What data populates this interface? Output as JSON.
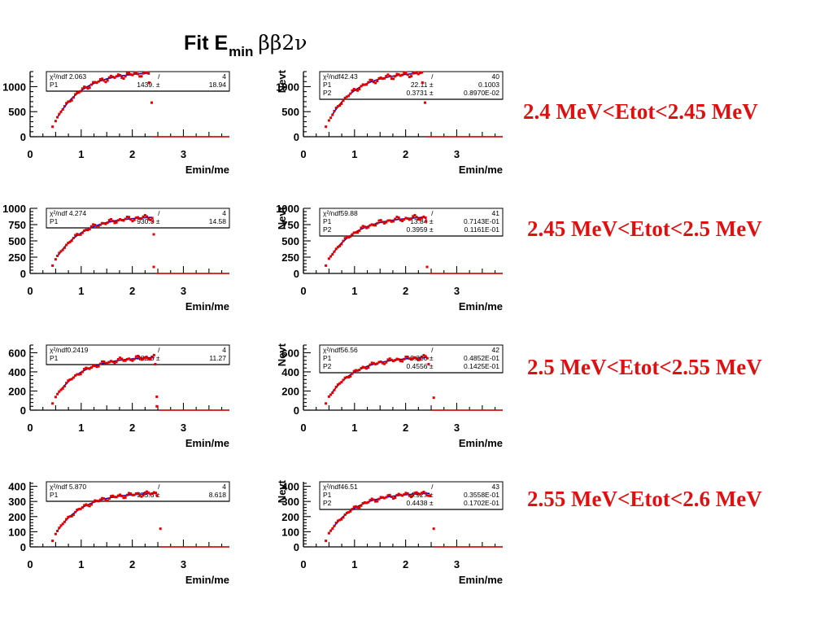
{
  "title": {
    "prefix": "Fit E",
    "sub": "min",
    "suffix": "ββ2ν"
  },
  "colors": {
    "data": "#e00000",
    "fit": "#0000cc",
    "label": "#e01010",
    "axis": "#000000"
  },
  "rows": [
    {
      "energy_label": "2.4 MeV<Etot<2.45 MeV"
    },
    {
      "energy_label": "2.45 MeV<Etot<2.5 MeV"
    },
    {
      "energy_label": "2.5 MeV<Etot<2.55 MeV"
    },
    {
      "energy_label": "2.55 MeV<Etot<2.6 MeV"
    }
  ],
  "chart_data": [
    {
      "type": "scatter",
      "row": 0,
      "col": 0,
      "xlabel": "Emin/me",
      "ylabel": "",
      "xlim": [
        0,
        3.9
      ],
      "ylim": [
        0,
        1300
      ],
      "xticks": [
        "0",
        "1",
        "2",
        "3"
      ],
      "yticks": [
        "0",
        "500",
        "1000"
      ],
      "stats": [
        [
          "χ²/ndf 2.063",
          "/",
          "4"
        ],
        [
          "P1",
          "1439. ±",
          "18.94"
        ]
      ],
      "points_peak": 1300,
      "edge_x": 2.33,
      "edge_y": 1080,
      "outliers": [
        [
          0.44,
          200
        ],
        [
          2.38,
          680
        ]
      ]
    },
    {
      "type": "scatter",
      "row": 0,
      "col": 1,
      "xlabel": "Emin/me",
      "ylabel": "Nevt",
      "xlim": [
        0,
        3.9
      ],
      "ylim": [
        0,
        1300
      ],
      "xticks": [
        "0",
        "1",
        "2",
        "3"
      ],
      "yticks": [
        "0",
        "500",
        "1000"
      ],
      "stats": [
        [
          "χ²/ndf42.43",
          "/",
          "40"
        ],
        [
          "P1",
          "22.11 ±",
          "0.1003"
        ],
        [
          "P2",
          "0.3731 ±",
          "0.8970E-02"
        ]
      ],
      "points_peak": 1300,
      "edge_x": 2.33,
      "edge_y": 1080,
      "outliers": [
        [
          0.44,
          200
        ],
        [
          2.38,
          680
        ]
      ]
    },
    {
      "type": "scatter",
      "row": 1,
      "col": 0,
      "xlabel": "Emin/me",
      "ylabel": "",
      "xlim": [
        0,
        3.9
      ],
      "ylim": [
        0,
        1000
      ],
      "xticks": [
        "0",
        "1",
        "2",
        "3"
      ],
      "yticks": [
        "0",
        "250",
        "500",
        "750",
        "1000"
      ],
      "stats": [
        [
          "χ²/ndf 4.274",
          "/",
          "4"
        ],
        [
          "P1",
          "930.3 ±",
          "14.58"
        ]
      ],
      "points_peak": 880,
      "edge_x": 2.4,
      "edge_y": 800,
      "outliers": [
        [
          0.44,
          120
        ],
        [
          2.42,
          600
        ],
        [
          2.42,
          100
        ]
      ]
    },
    {
      "type": "scatter",
      "row": 1,
      "col": 1,
      "xlabel": "Emin/me",
      "ylabel": "Nevt",
      "xlim": [
        0,
        3.9
      ],
      "ylim": [
        0,
        1000
      ],
      "xticks": [
        "0",
        "1",
        "2",
        "3"
      ],
      "yticks": [
        "0",
        "250",
        "500",
        "750",
        "1000"
      ],
      "stats": [
        [
          "χ²/ndf59.88",
          "/",
          "41"
        ],
        [
          "P1",
          "13.84 ±",
          "0.7143E-01"
        ],
        [
          "P2",
          "0.3959 ±",
          "0.1161E-01"
        ]
      ],
      "points_peak": 880,
      "edge_x": 2.4,
      "edge_y": 800,
      "outliers": [
        [
          0.44,
          120
        ],
        [
          2.42,
          100
        ]
      ]
    },
    {
      "type": "scatter",
      "row": 2,
      "col": 0,
      "xlabel": "Emin/me",
      "ylabel": "",
      "xlim": [
        0,
        3.9
      ],
      "ylim": [
        0,
        680
      ],
      "xticks": [
        "0",
        "1",
        "2",
        "3"
      ],
      "yticks": [
        "0",
        "200",
        "400",
        "600"
      ],
      "stats": [
        [
          "χ²/ndf0.2419",
          "/",
          "4"
        ],
        [
          "P1",
          "482.5 ±",
          "11.27"
        ]
      ],
      "points_peak": 560,
      "edge_x": 2.45,
      "edge_y": 480,
      "outliers": [
        [
          0.44,
          70
        ],
        [
          2.48,
          140
        ],
        [
          2.48,
          40
        ]
      ]
    },
    {
      "type": "scatter",
      "row": 2,
      "col": 1,
      "xlabel": "Emin/me",
      "ylabel": "Nevt",
      "xlim": [
        0,
        3.9
      ],
      "ylim": [
        0,
        680
      ],
      "xticks": [
        "0",
        "1",
        "2",
        "3"
      ],
      "yticks": [
        "0",
        "200",
        "400",
        "600"
      ],
      "stats": [
        [
          "χ²/ndf56.56",
          "/",
          "42"
        ],
        [
          "P1",
          "9.250 ±",
          "0.4852E-01"
        ],
        [
          "P2",
          "0.4556 ±",
          "0.1425E-01"
        ]
      ],
      "points_peak": 560,
      "edge_x": 2.45,
      "edge_y": 480,
      "outliers": [
        [
          0.44,
          70
        ],
        [
          2.55,
          130
        ]
      ]
    },
    {
      "type": "scatter",
      "row": 3,
      "col": 0,
      "xlabel": "Emin/me",
      "ylabel": "",
      "xlim": [
        0,
        3.9
      ],
      "ylim": [
        0,
        430
      ],
      "xticks": [
        "0",
        "1",
        "2",
        "3"
      ],
      "yticks": [
        "0",
        "100",
        "200",
        "300",
        "400"
      ],
      "stats": [
        [
          "χ²/ndf 5.870",
          "/",
          "4"
        ],
        [
          "P1",
          "375.3 ±",
          "8.618"
        ]
      ],
      "points_peak": 360,
      "edge_x": 2.48,
      "edge_y": 340,
      "outliers": [
        [
          0.44,
          40
        ],
        [
          2.55,
          120
        ]
      ]
    },
    {
      "type": "scatter",
      "row": 3,
      "col": 1,
      "xlabel": "Emin/me",
      "ylabel": "Nevt",
      "xlim": [
        0,
        3.9
      ],
      "ylim": [
        0,
        430
      ],
      "xticks": [
        "0",
        "1",
        "2",
        "3"
      ],
      "yticks": [
        "0",
        "100",
        "200",
        "300",
        "400"
      ],
      "stats": [
        [
          "χ²/ndf46.51",
          "/",
          "43"
        ],
        [
          "P1",
          "4.927 ±",
          "0.3558E-01"
        ],
        [
          "P2",
          "0.4438 ±",
          "0.1702E-01"
        ]
      ],
      "points_peak": 360,
      "edge_x": 2.48,
      "edge_y": 340,
      "outliers": [
        [
          0.44,
          40
        ],
        [
          2.55,
          120
        ]
      ]
    }
  ]
}
